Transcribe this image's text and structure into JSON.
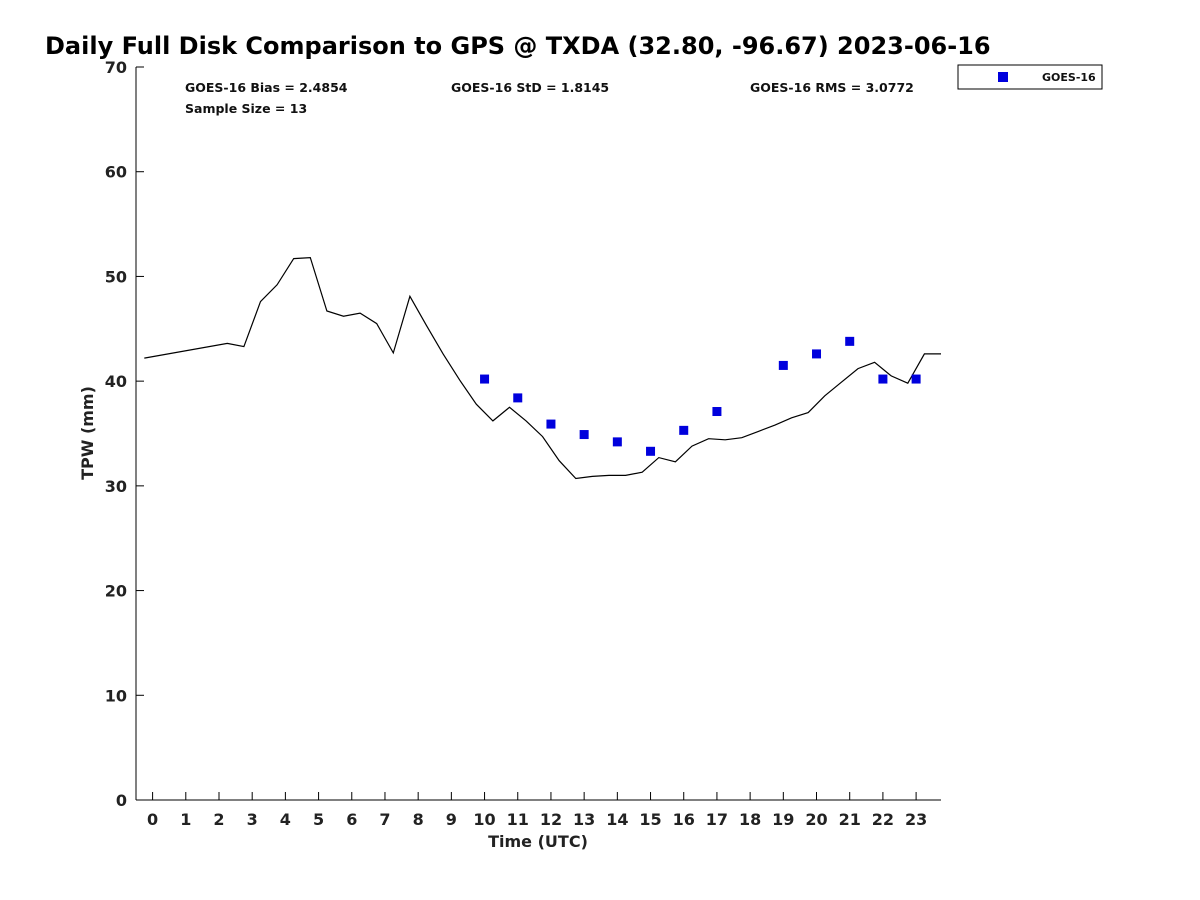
{
  "chart_data": {
    "type": "line",
    "title": "Daily Full Disk Comparison to GPS @ TXDA (32.80, -96.67) 2023-06-16",
    "xlabel": "Time (UTC)",
    "ylabel": "TPW (mm)",
    "xlim": [
      -0.5,
      23.75
    ],
    "ylim": [
      0,
      70
    ],
    "x_ticks": [
      "0",
      "1",
      "2",
      "3",
      "4",
      "5",
      "6",
      "7",
      "8",
      "9",
      "10",
      "11",
      "12",
      "13",
      "14",
      "15",
      "16",
      "17",
      "18",
      "19",
      "20",
      "21",
      "22",
      "23"
    ],
    "y_ticks": [
      "0",
      "10",
      "20",
      "30",
      "40",
      "50",
      "60",
      "70"
    ],
    "grid": false,
    "legend_position": "top-right",
    "stats": {
      "bias": "GOES-16 Bias = 2.4854",
      "std": "GOES-16 StD = 1.8145",
      "rms": "GOES-16 RMS = 3.0772",
      "sample_size": "Sample Size = 13"
    },
    "series": [
      {
        "type": "line",
        "color": "#000000",
        "x": [
          -0.25,
          2.25,
          2.75,
          3.25,
          3.75,
          4.25,
          4.75,
          5.25,
          5.75,
          6.25,
          6.75,
          7.25,
          7.75,
          8.25,
          8.75,
          9.25,
          9.75,
          10.25,
          10.75,
          11.25,
          11.75,
          12.25,
          12.75,
          13.25,
          13.75,
          14.25,
          14.75,
          15.25,
          15.75,
          16.25,
          16.75,
          17.25,
          17.75,
          18.25,
          18.75,
          19.25,
          19.75,
          20.25,
          20.75,
          21.25,
          21.75,
          22.25,
          22.75,
          23.25,
          23.75
        ],
        "values": [
          42.2,
          43.6,
          43.3,
          47.6,
          49.2,
          51.7,
          51.8,
          46.7,
          46.2,
          46.5,
          45.5,
          42.7,
          48.1,
          45.3,
          42.6,
          40.1,
          37.8,
          36.2,
          37.5,
          36.2,
          34.7,
          32.4,
          30.7,
          30.9,
          31.0,
          31.0,
          31.3,
          32.7,
          32.3,
          33.8,
          34.5,
          34.4,
          34.6,
          35.2,
          35.8,
          36.5,
          37.0,
          38.6,
          39.9,
          41.2,
          41.8,
          40.5,
          39.8,
          42.6,
          42.6
        ]
      },
      {
        "type": "scatter",
        "name": "GOES-16",
        "color": "#0000dd",
        "marker": "square",
        "x": [
          10,
          11,
          12,
          13,
          14,
          15,
          16,
          17,
          19,
          20,
          21,
          22,
          23
        ],
        "values": [
          40.2,
          38.4,
          35.9,
          34.9,
          34.2,
          33.3,
          35.3,
          37.1,
          41.5,
          42.6,
          43.8,
          40.2,
          40.2
        ]
      }
    ]
  }
}
